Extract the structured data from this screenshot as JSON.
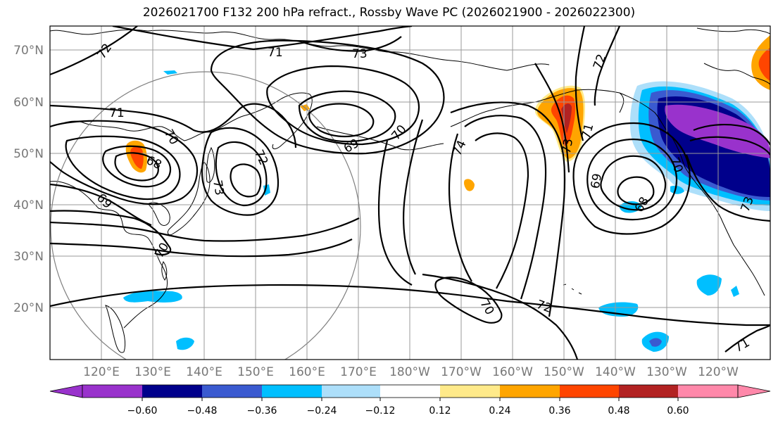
{
  "title": "2026021700 F132 200 hPa refract., Rossby Wave PC (2026021900 - 2026022300)",
  "map": {
    "lat_labels": [
      "70°N",
      "60°N",
      "50°N",
      "40°N",
      "30°N",
      "20°N"
    ],
    "lon_labels": [
      "120°E",
      "130°E",
      "140°E",
      "150°E",
      "160°E",
      "170°E",
      "180°W",
      "170°W",
      "160°W",
      "150°W",
      "140°W",
      "130°W",
      "120°W"
    ],
    "contour_labels": [
      "72",
      "71",
      "73",
      "71",
      "70",
      "68",
      "69",
      "72",
      "73",
      "70",
      "69",
      "70",
      "74",
      "72",
      "73",
      "71",
      "69",
      "68",
      "70",
      "73",
      "72",
      "70",
      "71"
    ]
  },
  "colorbar": {
    "colors": [
      "#9932CC",
      "#00008B",
      "#3A5AD0",
      "#00BFFF",
      "#ADDFFA",
      "#FFFFFF",
      "#FFEA8A",
      "#FFA500",
      "#FF4500",
      "#B22222",
      "#FF88AA"
    ],
    "tick_labels": [
      "−0.60",
      "−0.48",
      "−0.36",
      "−0.24",
      "−0.12",
      "0.12",
      "0.24",
      "0.36",
      "0.48",
      "0.60"
    ]
  }
}
